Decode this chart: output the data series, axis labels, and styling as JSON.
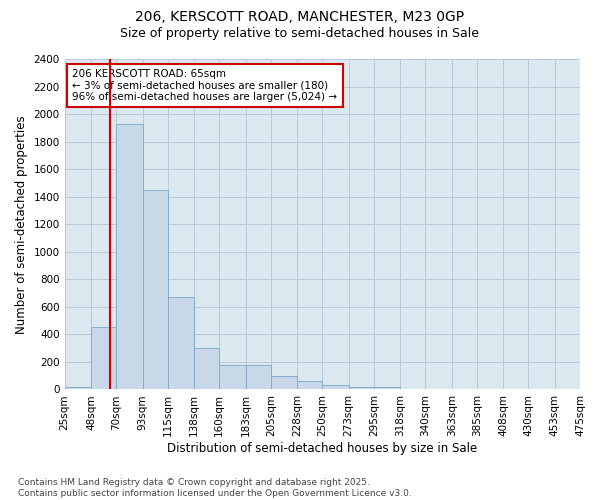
{
  "title_line1": "206, KERSCOTT ROAD, MANCHESTER, M23 0GP",
  "title_line2": "Size of property relative to semi-detached houses in Sale",
  "xlabel": "Distribution of semi-detached houses by size in Sale",
  "ylabel": "Number of semi-detached properties",
  "bin_labels": [
    "25sqm",
    "48sqm",
    "70sqm",
    "93sqm",
    "115sqm",
    "138sqm",
    "160sqm",
    "183sqm",
    "205sqm",
    "228sqm",
    "250sqm",
    "273sqm",
    "295sqm",
    "318sqm",
    "340sqm",
    "363sqm",
    "385sqm",
    "408sqm",
    "430sqm",
    "453sqm",
    "475sqm"
  ],
  "bin_edges": [
    25,
    48,
    70,
    93,
    115,
    138,
    160,
    183,
    205,
    228,
    250,
    273,
    295,
    318,
    340,
    363,
    385,
    408,
    430,
    453,
    475
  ],
  "bar_heights": [
    20,
    450,
    1930,
    1450,
    670,
    300,
    180,
    180,
    95,
    60,
    35,
    20,
    15,
    4,
    3,
    0,
    0,
    0,
    0,
    0
  ],
  "bar_color": "#c8d8e8",
  "bar_edge_color": "#7aa8c8",
  "grid_color": "#b8c8d8",
  "plot_bg_color": "#dce8f0",
  "fig_bg_color": "#ffffff",
  "vline_x": 65,
  "vline_color": "#cc0000",
  "ylim": [
    0,
    2400
  ],
  "yticks": [
    0,
    200,
    400,
    600,
    800,
    1000,
    1200,
    1400,
    1600,
    1800,
    2000,
    2200,
    2400
  ],
  "annotation_title": "206 KERSCOTT ROAD: 65sqm",
  "annotation_line2": "← 3% of semi-detached houses are smaller (180)",
  "annotation_line3": "96% of semi-detached houses are larger (5,024) →",
  "annotation_box_color": "#cc0000",
  "annotation_bg": "#ffffff",
  "footnote": "Contains HM Land Registry data © Crown copyright and database right 2025.\nContains public sector information licensed under the Open Government Licence v3.0.",
  "title_fontsize": 10,
  "subtitle_fontsize": 9,
  "axis_label_fontsize": 8.5,
  "tick_fontsize": 7.5,
  "annot_fontsize": 7.5,
  "footnote_fontsize": 6.5
}
